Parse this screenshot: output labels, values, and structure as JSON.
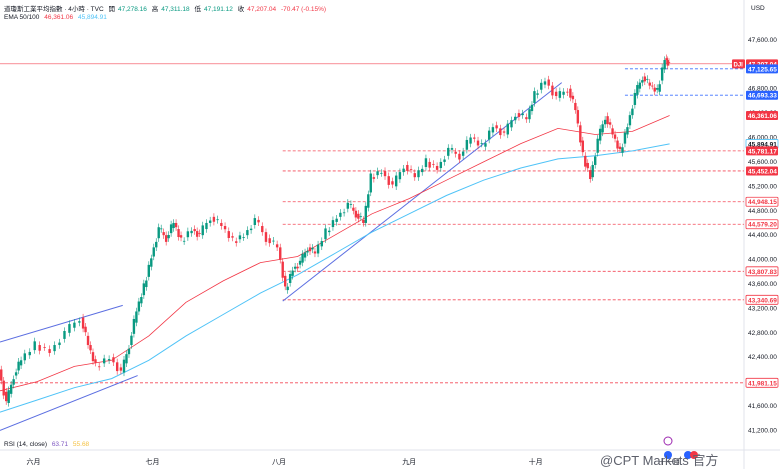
{
  "header": {
    "title": "道瓊斯工業平均指數 · 4小時 · TVC",
    "ohlc_labels": [
      "開",
      "高",
      "低",
      "收"
    ],
    "open": "47,278.16",
    "high": "47,311.18",
    "low": "47,191.12",
    "close": "47,207.04",
    "change": "-70.47 (-0.15%)",
    "ema_label": "EMA 50/100",
    "ema50": "46,361.06",
    "ema100": "45,894.91",
    "rsi_label": "RSI (14, close)",
    "rsi": "63.71",
    "rsi_ma": "55.68"
  },
  "currency": "USD",
  "watermark": "@CPT Markets 官方",
  "colors": {
    "up": "#089981",
    "down": "#f23645",
    "ema50": "#f23645",
    "ema100": "#4fc3f7",
    "trend": "#5b6ee1",
    "level": "#f23645",
    "blue_label": "#2962ff",
    "dj_label": "#f23645"
  },
  "chart_data": {
    "type": "line",
    "title": "",
    "y_ticks": [
      47600,
      47200,
      46800,
      46400,
      46000,
      45600,
      45200,
      44800,
      44400,
      44000,
      43600,
      43200,
      42800,
      42400,
      42000,
      41600,
      41200
    ],
    "ylim": [
      40880,
      47860
    ],
    "x_labels": [
      {
        "label": "六月",
        "t": 0.045
      },
      {
        "label": "七月",
        "t": 0.205
      },
      {
        "label": "八月",
        "t": 0.375
      },
      {
        "label": "九月",
        "t": 0.55
      },
      {
        "label": "十月",
        "t": 0.72
      },
      {
        "label": "十一月",
        "t": 0.9
      }
    ],
    "price": [
      [
        0.0,
        42200
      ],
      [
        0.01,
        41650
      ],
      [
        0.02,
        42100
      ],
      [
        0.03,
        42350
      ],
      [
        0.05,
        42600
      ],
      [
        0.07,
        42500
      ],
      [
        0.09,
        42800
      ],
      [
        0.11,
        43050
      ],
      [
        0.12,
        42600
      ],
      [
        0.13,
        42250
      ],
      [
        0.15,
        42400
      ],
      [
        0.165,
        42150
      ],
      [
        0.175,
        42600
      ],
      [
        0.185,
        43150
      ],
      [
        0.195,
        43550
      ],
      [
        0.205,
        44050
      ],
      [
        0.215,
        44500
      ],
      [
        0.225,
        44350
      ],
      [
        0.235,
        44600
      ],
      [
        0.245,
        44300
      ],
      [
        0.26,
        44500
      ],
      [
        0.27,
        44400
      ],
      [
        0.285,
        44700
      ],
      [
        0.3,
        44550
      ],
      [
        0.315,
        44300
      ],
      [
        0.33,
        44400
      ],
      [
        0.345,
        44650
      ],
      [
        0.36,
        44350
      ],
      [
        0.375,
        44200
      ],
      [
        0.385,
        43500
      ],
      [
        0.395,
        43850
      ],
      [
        0.405,
        43950
      ],
      [
        0.415,
        44200
      ],
      [
        0.425,
        44100
      ],
      [
        0.44,
        44450
      ],
      [
        0.455,
        44700
      ],
      [
        0.47,
        44900
      ],
      [
        0.48,
        44750
      ],
      [
        0.49,
        44600
      ],
      [
        0.5,
        45350
      ],
      [
        0.515,
        45450
      ],
      [
        0.53,
        45200
      ],
      [
        0.545,
        45550
      ],
      [
        0.56,
        45350
      ],
      [
        0.575,
        45600
      ],
      [
        0.59,
        45500
      ],
      [
        0.605,
        45800
      ],
      [
        0.62,
        45700
      ],
      [
        0.635,
        46000
      ],
      [
        0.65,
        45850
      ],
      [
        0.665,
        46200
      ],
      [
        0.68,
        46050
      ],
      [
        0.695,
        46400
      ],
      [
        0.71,
        46300
      ],
      [
        0.72,
        46700
      ],
      [
        0.735,
        46950
      ],
      [
        0.75,
        46650
      ],
      [
        0.765,
        46800
      ],
      [
        0.775,
        46450
      ],
      [
        0.785,
        45700
      ],
      [
        0.795,
        45350
      ],
      [
        0.805,
        45950
      ],
      [
        0.815,
        46350
      ],
      [
        0.825,
        46050
      ],
      [
        0.835,
        45750
      ],
      [
        0.845,
        46200
      ],
      [
        0.855,
        46700
      ],
      [
        0.865,
        47000
      ],
      [
        0.875,
        46850
      ],
      [
        0.885,
        46750
      ],
      [
        0.895,
        47300
      ],
      [
        0.9,
        47207
      ]
    ],
    "ema50": [
      [
        0.0,
        41850
      ],
      [
        0.05,
        42000
      ],
      [
        0.1,
        42250
      ],
      [
        0.15,
        42350
      ],
      [
        0.2,
        42750
      ],
      [
        0.25,
        43300
      ],
      [
        0.3,
        43650
      ],
      [
        0.35,
        43950
      ],
      [
        0.4,
        44050
      ],
      [
        0.45,
        44400
      ],
      [
        0.5,
        44750
      ],
      [
        0.55,
        45000
      ],
      [
        0.6,
        45300
      ],
      [
        0.65,
        45600
      ],
      [
        0.7,
        45900
      ],
      [
        0.75,
        46150
      ],
      [
        0.8,
        46050
      ],
      [
        0.85,
        46100
      ],
      [
        0.9,
        46361
      ]
    ],
    "ema100": [
      [
        0.0,
        41500
      ],
      [
        0.05,
        41700
      ],
      [
        0.1,
        41900
      ],
      [
        0.15,
        42050
      ],
      [
        0.2,
        42350
      ],
      [
        0.25,
        42750
      ],
      [
        0.3,
        43100
      ],
      [
        0.35,
        43450
      ],
      [
        0.4,
        43750
      ],
      [
        0.45,
        44100
      ],
      [
        0.5,
        44450
      ],
      [
        0.55,
        44750
      ],
      [
        0.6,
        45050
      ],
      [
        0.65,
        45300
      ],
      [
        0.7,
        45500
      ],
      [
        0.75,
        45650
      ],
      [
        0.8,
        45700
      ],
      [
        0.85,
        45780
      ],
      [
        0.9,
        45895
      ]
    ],
    "trendlines": [
      [
        [
          0.0,
          41200
        ],
        [
          0.185,
          42100
        ]
      ],
      [
        [
          0.0,
          42650
        ],
        [
          0.165,
          43250
        ]
      ],
      [
        [
          0.38,
          43320
        ],
        [
          0.755,
          46900
        ]
      ]
    ],
    "levels": [
      {
        "value": 47207.04,
        "label": "47,207.04",
        "tag": "DJI",
        "style": "solid",
        "kind": "red-solid"
      },
      {
        "value": 47125.65,
        "label": "47,125.65",
        "style": "dashed",
        "kind": "blue"
      },
      {
        "value": 46693.33,
        "label": "46,693.33",
        "style": "dashed",
        "kind": "blue"
      },
      {
        "value": 46361.06,
        "label": "46,361.06",
        "style": "none",
        "kind": "red-solid"
      },
      {
        "value": 45894.91,
        "label": "45,894.91",
        "style": "none",
        "kind": "cyan"
      },
      {
        "value": 45781.17,
        "label": "45,781.17",
        "style": "dashed",
        "kind": "red"
      },
      {
        "value": 45452.04,
        "label": "45,452.04",
        "style": "dashed",
        "kind": "red"
      },
      {
        "value": 44948.15,
        "label": "44,948.15",
        "style": "dashed",
        "kind": "red"
      },
      {
        "value": 44579.2,
        "label": "44,579.20",
        "style": "dashed",
        "kind": "red"
      },
      {
        "value": 43807.83,
        "label": "43,807.83",
        "style": "dashed",
        "kind": "red"
      },
      {
        "value": 43340.69,
        "label": "43,340.69",
        "style": "dashed",
        "kind": "red"
      },
      {
        "value": 41981.15,
        "label": "41,981.15",
        "style": "dashed",
        "kind": "red"
      }
    ]
  }
}
